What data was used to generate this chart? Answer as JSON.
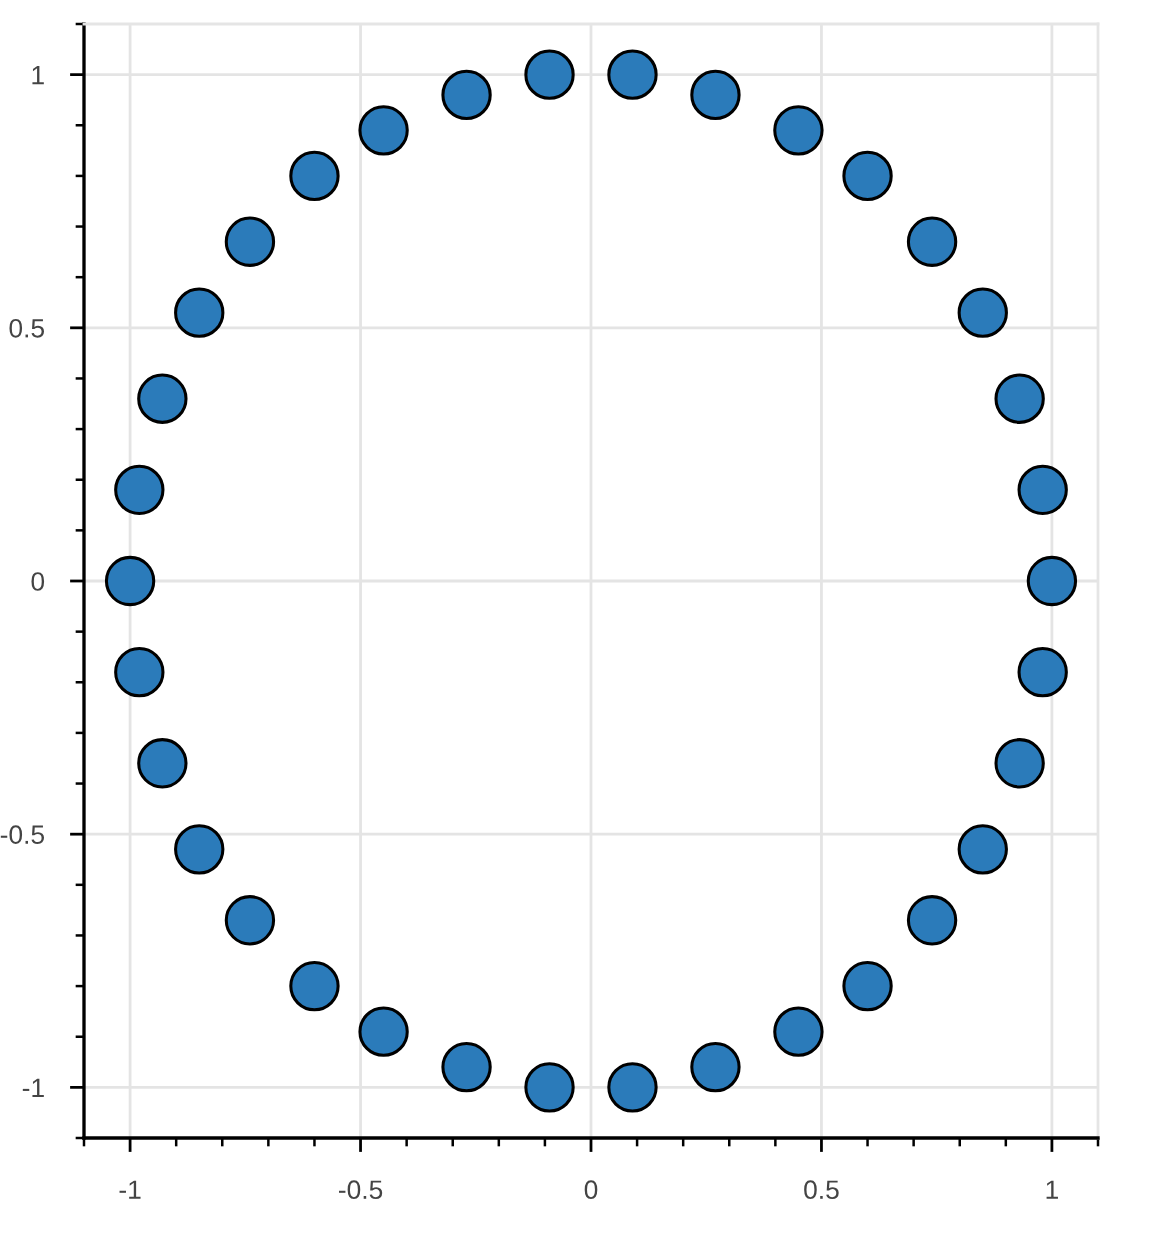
{
  "chart_data": {
    "type": "scatter",
    "x": [
      1,
      0.98,
      0.93,
      0.85,
      0.74,
      0.6,
      0.45,
      0.27,
      0.09,
      -0.09,
      -0.27,
      -0.45,
      -0.6,
      -0.74,
      -0.85,
      -0.93,
      -0.98,
      -1,
      -0.98,
      -0.93,
      -0.85,
      -0.74,
      -0.6,
      -0.45,
      -0.27,
      -0.09,
      0.09,
      0.27,
      0.45,
      0.6,
      0.74,
      0.85,
      0.93,
      0.98
    ],
    "values": [
      0,
      0.18,
      0.36,
      0.53,
      0.67,
      0.8,
      0.89,
      0.96,
      1,
      1,
      0.96,
      0.89,
      0.8,
      0.67,
      0.53,
      0.36,
      0.18,
      0,
      -0.18,
      -0.36,
      -0.53,
      -0.67,
      -0.8,
      -0.89,
      -0.96,
      -1,
      -1,
      -0.96,
      -0.89,
      -0.8,
      -0.67,
      -0.53,
      -0.36,
      -0.18
    ],
    "color": "#2b7bba",
    "marker": "circle",
    "xlim": [
      -1.1,
      1.1
    ],
    "ylim": [
      -1.1,
      1.1
    ],
    "xticks": [
      -1,
      -0.5,
      0,
      0.5,
      1
    ],
    "yticks": [
      -1,
      -0.5,
      0,
      0.5,
      1
    ],
    "grid": true
  }
}
